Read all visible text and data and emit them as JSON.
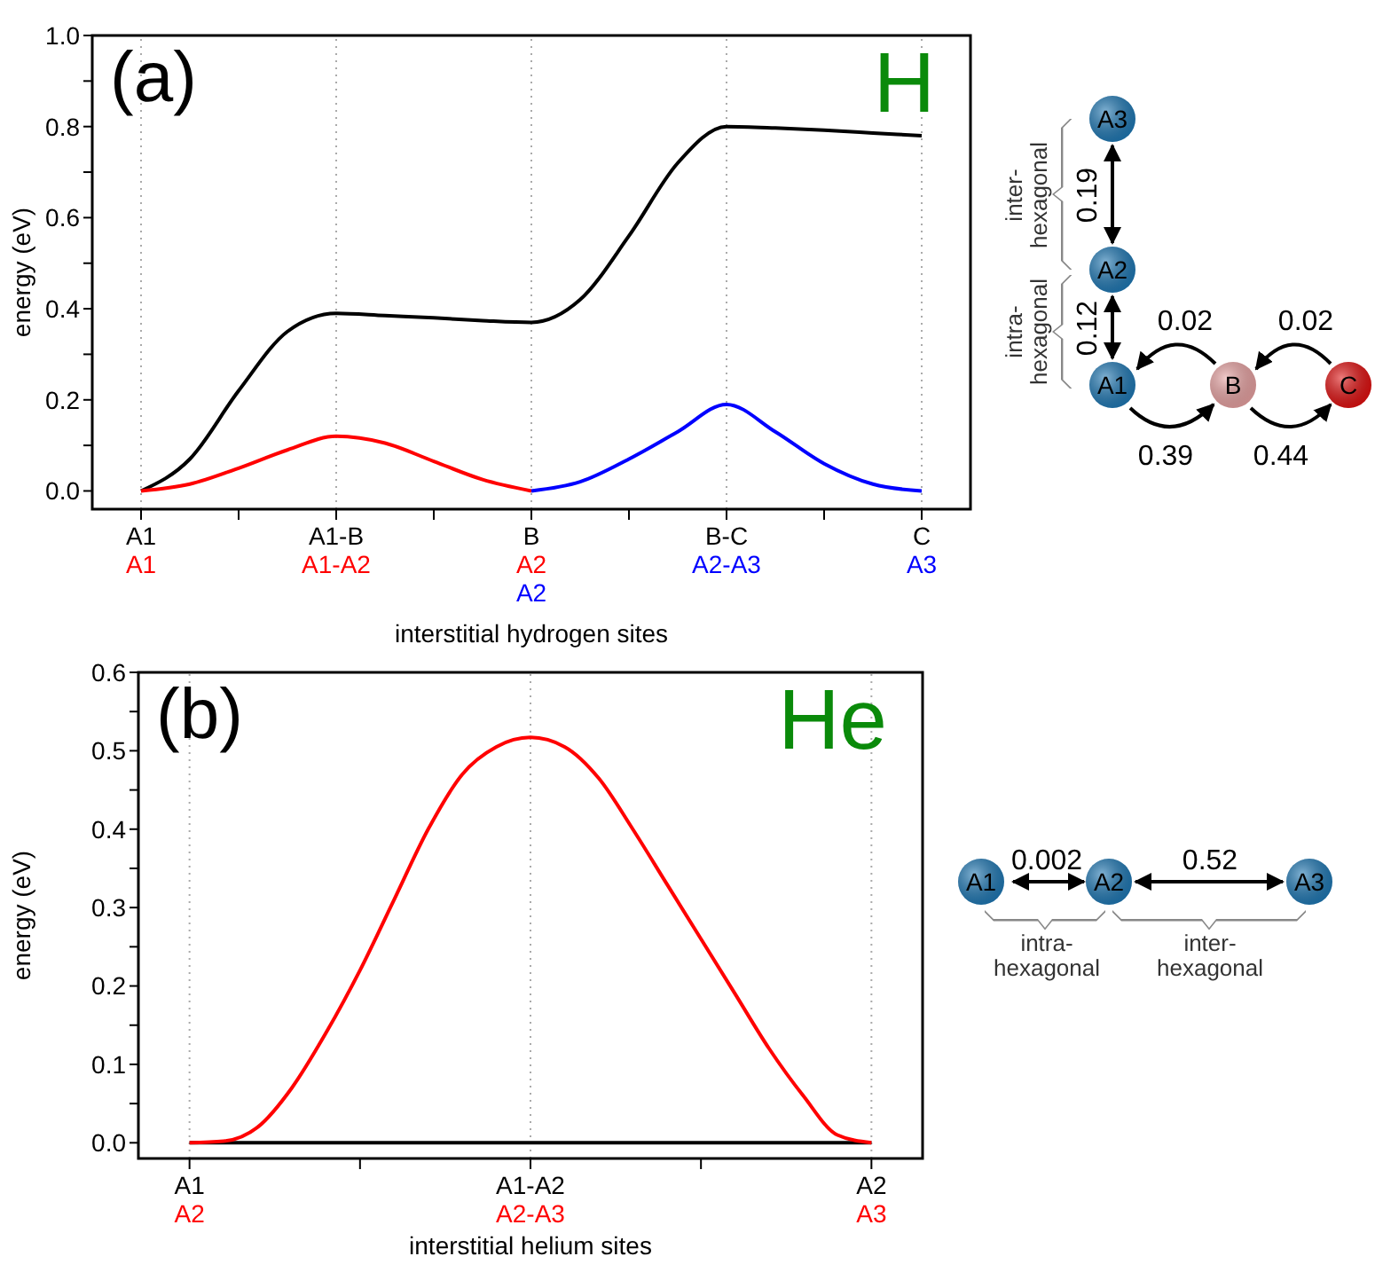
{
  "chart_data": [
    {
      "type": "line",
      "title": "H",
      "xlabel": "interstitial hydrogen sites",
      "ylabel": "energy (eV)",
      "ylim": [
        -0.04,
        1.0
      ],
      "categories": [
        "A1\nA1",
        null,
        null,
        null,
        "A1-B\nA1-A2",
        null,
        null,
        null,
        "B\nA2\nA2",
        null,
        null,
        null,
        "B-C\nA2-A3",
        null,
        null,
        null,
        "C\nA3"
      ],
      "yticks": [
        {
          "value": 0,
          "label": "0.0"
        },
        {
          "value": 0.1,
          "label": null
        },
        {
          "value": 0.2,
          "label": "0.2"
        },
        {
          "value": 0.3,
          "label": null
        },
        {
          "value": 0.4,
          "label": "0.4"
        },
        {
          "value": 0.5,
          "label": null
        },
        {
          "value": 0.6,
          "label": "0.6"
        },
        {
          "value": 0.7,
          "label": null
        },
        {
          "value": 0.8,
          "label": "0.8"
        },
        {
          "value": 0.9,
          "label": null
        },
        {
          "value": 1.0,
          "label": "1.0"
        }
      ],
      "grid": "x",
      "marker": "none",
      "series": [
        {
          "color": "#000000",
          "values": [
            0,
            0.07,
            0.22,
            0.35,
            0.39,
            0.385,
            0.38,
            0.374,
            0.37,
            0.42,
            0.56,
            0.72,
            0.8,
            0.797,
            0.792,
            0.786,
            0.78
          ]
        },
        {
          "color": "#ff0000",
          "values": [
            0,
            0.015,
            0.05,
            0.09,
            0.12,
            0.105,
            0.065,
            0.025,
            0,
            null,
            null,
            null,
            null,
            null,
            null,
            null,
            null
          ]
        },
        {
          "color": "#0000ff",
          "values": [
            null,
            null,
            null,
            null,
            null,
            null,
            null,
            null,
            0,
            0.02,
            0.07,
            0.13,
            0.19,
            0.13,
            0.06,
            0.015,
            0
          ]
        }
      ],
      "annotations": [
        "(a)",
        "A3",
        "A2",
        "A1",
        "B",
        "C",
        "0.19",
        "0.12",
        "0.02",
        "0.02",
        "0.39",
        "0.44",
        "inter-hexagonal",
        "intra-hexagonal"
      ]
    },
    {
      "type": "line",
      "title": "He",
      "xlabel": "interstitial helium sites",
      "ylabel": "energy (eV)",
      "ylim": [
        -0.02,
        0.6
      ],
      "categories": [
        "A1\nA2",
        null,
        null,
        null,
        null,
        null,
        null,
        null,
        null,
        null,
        "A1-A2\nA2-A3",
        null,
        null,
        null,
        null,
        null,
        null,
        null,
        null,
        null,
        "A2\nA3"
      ],
      "yticks": [
        {
          "value": 0,
          "label": "0.0"
        },
        {
          "value": 0.05,
          "label": null
        },
        0.1,
        {
          "value": 0.15,
          "label": null
        },
        0.2,
        {
          "value": 0.25,
          "label": null
        },
        0.3,
        {
          "value": 0.35,
          "label": null
        },
        0.4,
        {
          "value": 0.45,
          "label": null
        },
        0.5,
        {
          "value": 0.55,
          "label": null
        },
        0.6
      ],
      "grid": "x",
      "marker": "none",
      "series": [
        {
          "color": "#000000",
          "values": [
            0,
            0,
            0,
            0,
            0,
            0,
            0,
            0,
            0,
            0,
            0,
            0,
            0,
            0,
            0,
            0,
            0,
            0,
            0,
            0,
            0
          ]
        },
        {
          "color": "#ff0000",
          "values": [
            0,
            0.002,
            0.02,
            0.07,
            0.14,
            0.22,
            0.31,
            0.4,
            0.47,
            0.505,
            0.517,
            0.505,
            0.465,
            0.4,
            0.33,
            0.26,
            0.19,
            0.12,
            0.06,
            0.01,
            0
          ]
        }
      ],
      "annotations": [
        "(b)",
        "A1",
        "A2",
        "A3",
        "0.002",
        "0.52",
        "intra-hexagonal",
        "inter-hexagonal"
      ]
    }
  ]
}
